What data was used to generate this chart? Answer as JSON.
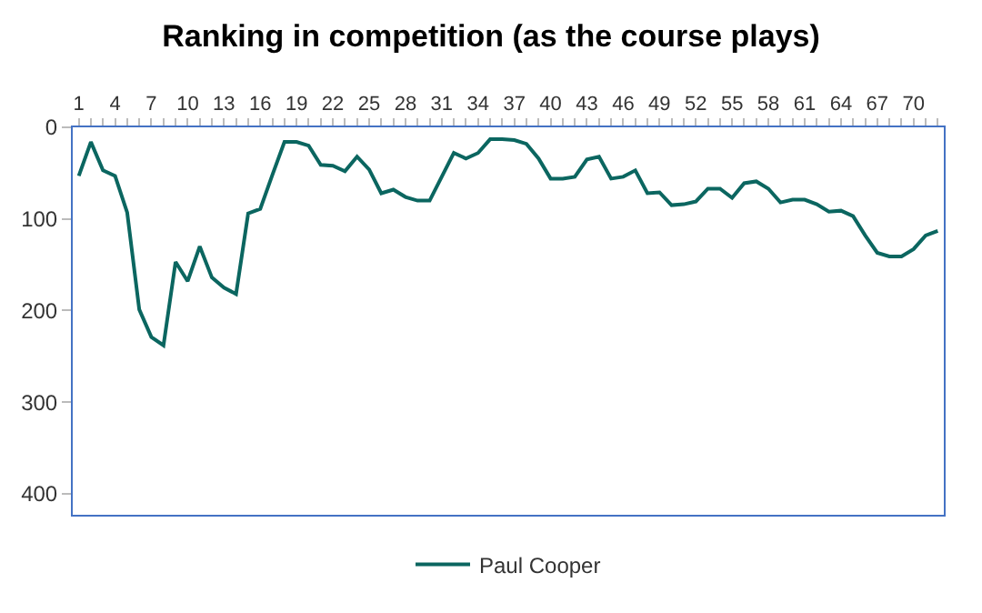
{
  "chart_data": {
    "type": "line",
    "title": "Ranking in competition (as the course plays)",
    "categories": [
      "1",
      null,
      null,
      "4",
      null,
      null,
      "7",
      null,
      null,
      "10",
      null,
      null,
      "13",
      null,
      null,
      "16",
      null,
      null,
      "19",
      null,
      null,
      "22",
      null,
      null,
      "25",
      null,
      null,
      "28",
      null,
      null,
      "31",
      null,
      null,
      "34",
      null,
      null,
      "37",
      null,
      null,
      "40",
      null,
      null,
      "43",
      null,
      null,
      "46",
      null,
      null,
      "49",
      null,
      null,
      "52",
      null,
      null,
      "55",
      null,
      null,
      "58",
      null,
      null,
      "61",
      null,
      null,
      "64",
      null,
      null,
      "67",
      null,
      null,
      "70",
      null,
      null
    ],
    "series": [
      {
        "name": "Paul Cooper",
        "color": "#0b6660",
        "values": [
          53,
          16,
          47,
          53,
          93,
          199,
          229,
          238,
          147,
          168,
          130,
          164,
          175,
          182,
          94,
          89,
          52,
          16,
          16,
          20,
          41,
          42,
          48,
          32,
          46,
          72,
          68,
          76,
          80,
          80,
          54,
          28,
          34,
          28,
          13,
          13,
          14,
          18,
          34,
          56,
          56,
          54,
          35,
          32,
          56,
          54,
          47,
          72,
          71,
          85,
          84,
          81,
          67,
          67,
          77,
          61,
          59,
          67,
          82,
          79,
          79,
          84,
          92,
          91,
          97,
          118,
          137,
          141,
          141,
          133,
          118,
          113
        ]
      }
    ],
    "ylim": [
      423,
      0
    ],
    "yticks": [
      0,
      100,
      200,
      300,
      400
    ],
    "legend": "bottom",
    "marker": "none",
    "line_style": "solid"
  }
}
